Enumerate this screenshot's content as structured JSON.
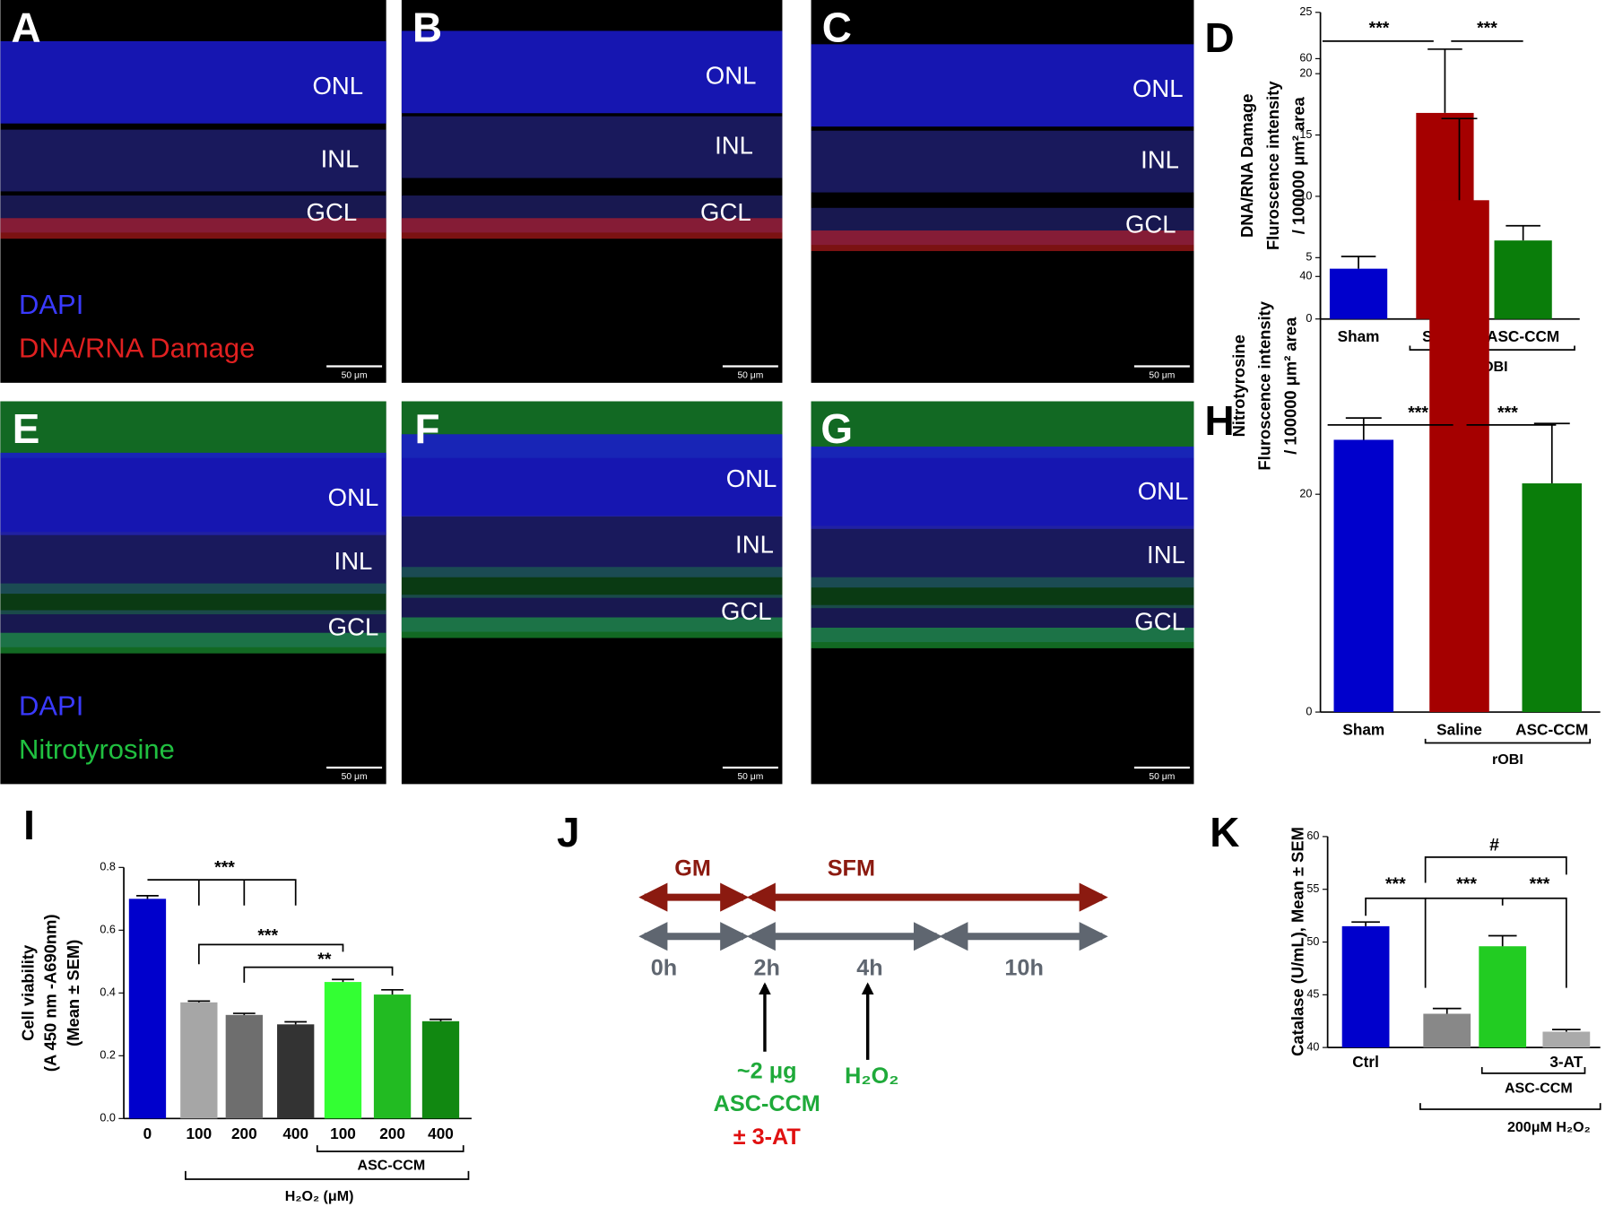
{
  "micrographs": [
    {
      "letter": "A",
      "layers": [
        "ONL",
        "INL",
        "GCL"
      ],
      "stains": [
        "DAPI",
        "DNA/RNA Damage"
      ],
      "scale_bar": "50 μm"
    },
    {
      "letter": "B",
      "layers": [
        "ONL",
        "INL",
        "GCL"
      ],
      "scale_bar": "50 μm"
    },
    {
      "letter": "C",
      "layers": [
        "ONL",
        "INL",
        "GCL"
      ],
      "scale_bar": "50 μm"
    },
    {
      "letter": "E",
      "layers": [
        "ONL",
        "INL",
        "GCL"
      ],
      "stains": [
        "DAPI",
        "Nitrotyrosine"
      ],
      "scale_bar": "50 μm"
    },
    {
      "letter": "F",
      "layers": [
        "ONL",
        "INL",
        "GCL"
      ],
      "scale_bar": "50 μm"
    },
    {
      "letter": "G",
      "layers": [
        "ONL",
        "INL",
        "GCL"
      ],
      "scale_bar": "50 μm"
    }
  ],
  "chart_data": [
    {
      "type": "bar",
      "letter": "D",
      "ylabel": [
        "DNA/RNA Damage",
        "Fluroscence intensity",
        "/ 100000 μm² area"
      ],
      "categories": [
        "Sham",
        "Saline",
        "ASC-CCM"
      ],
      "values": [
        4.1,
        16.8,
        6.4
      ],
      "errors": [
        1.0,
        5.2,
        1.2
      ],
      "colors": [
        "#0000cc",
        "#a50000",
        "#0a7d0a"
      ],
      "ylim": [
        0,
        25
      ],
      "yticks": [
        0,
        5,
        10,
        15,
        20,
        25
      ],
      "significance": [
        "***",
        "***"
      ],
      "groups": [
        "rOBI"
      ]
    },
    {
      "type": "bar",
      "letter": "H",
      "ylabel": [
        "Nitrotyrosine",
        "Fluroscence intensity",
        "/ 100000 μm² area"
      ],
      "categories": [
        "Sham",
        "Saline",
        "ASC-CCM"
      ],
      "values": [
        25,
        47,
        21
      ],
      "errors": [
        2,
        7.5,
        5.5
      ],
      "colors": [
        "#0000cc",
        "#a50000",
        "#0a7d0a"
      ],
      "ylim": [
        0,
        60
      ],
      "yticks": [
        0,
        20,
        40,
        60
      ],
      "significance": [
        "***",
        "***"
      ],
      "groups": [
        "rOBI"
      ]
    },
    {
      "type": "bar",
      "letter": "I",
      "ylabel": [
        "Cell viability",
        "(A 450 nm -A690nm)",
        "(Mean ± SEM)"
      ],
      "categories": [
        "0",
        "100",
        "200",
        "400",
        "100",
        "200",
        "400"
      ],
      "values": [
        0.7,
        0.37,
        0.33,
        0.3,
        0.435,
        0.395,
        0.31
      ],
      "errors": [
        0.01,
        0.004,
        0.005,
        0.008,
        0.008,
        0.015,
        0.006
      ],
      "colors": [
        "#0000cc",
        "#a6a6a6",
        "#6e6e6e",
        "#333333",
        "#33ff33",
        "#22bb22",
        "#118811"
      ],
      "ylim": [
        0,
        0.8
      ],
      "yticks": [
        {
          "value": 0,
          "label": "0.0"
        },
        0.2,
        0.4,
        0.6,
        0.8
      ],
      "significance": [
        "***",
        "***",
        "**"
      ],
      "groups": [
        "ASC-CCM",
        "H₂O₂ (μM)"
      ]
    },
    {
      "type": "bar",
      "letter": "K",
      "ylabel": [
        "Catalase (U/mL), Mean ± SEM"
      ],
      "categories": [
        "Ctrl",
        null,
        null,
        "3-AT"
      ],
      "values": [
        51.5,
        43.2,
        49.6,
        41.5
      ],
      "errors": [
        0.4,
        0.5,
        1.0,
        0.2
      ],
      "colors": [
        "#0000cc",
        "#888888",
        "#22cc22",
        "#aaaaaa"
      ],
      "ylim": [
        40,
        60
      ],
      "yticks": [
        40,
        45,
        50,
        55,
        60
      ],
      "significance": [
        "***",
        "***",
        "***",
        "#"
      ],
      "groups": [
        "ASC-CCM",
        "200μM H₂O₂"
      ]
    }
  ],
  "timeline": {
    "letter": "J",
    "phases": [
      "GM",
      "SFM"
    ],
    "times": [
      "0h",
      "2h",
      "4h",
      "10h"
    ],
    "treatment": [
      "~2 μg",
      "ASC-CCM",
      "± 3-AT"
    ],
    "stress": "H₂O₂"
  }
}
